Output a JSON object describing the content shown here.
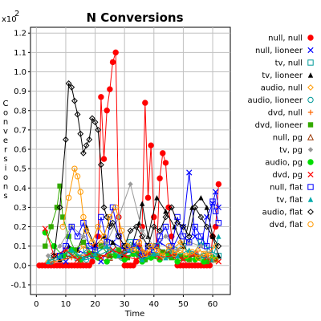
{
  "chart_data": {
    "type": "line",
    "title": "N Conversions",
    "xlabel": "Time",
    "ylabel": "Conversions",
    "y_multiplier": "x10",
    "y_multiplier_exp": "2",
    "xlim": [
      -2,
      66
    ],
    "ylim": [
      -0.15,
      1.23
    ],
    "x_ticks": [
      0,
      10,
      20,
      30,
      40,
      50,
      60
    ],
    "y_ticks": [
      -0.1,
      0.0,
      0.1,
      0.2,
      0.3,
      0.4,
      0.5,
      0.6,
      0.7,
      0.8,
      0.9,
      1.0,
      1.1,
      1.2
    ],
    "y_tick_labels": [
      "-0.1",
      "0.0",
      "0.1",
      "0.2",
      "0.3",
      "0.4",
      "0.5",
      "0.6",
      "0.7",
      "0.8",
      "0.9",
      "1.0",
      "1.1",
      "1.2"
    ],
    "grid": true,
    "legend_position": "right",
    "series": [
      {
        "name": "null, null",
        "color": "#ff0000",
        "marker": "filled-circle",
        "x": [
          1,
          2,
          3,
          4,
          5,
          6,
          7,
          8,
          9,
          10,
          11,
          12,
          13,
          14,
          15,
          16,
          17,
          18,
          19,
          20,
          21,
          22,
          23,
          24,
          25,
          26,
          27,
          28,
          29,
          30,
          31,
          32,
          33,
          34,
          35,
          36,
          37,
          38,
          39,
          40,
          41,
          42,
          43,
          44,
          45,
          46,
          47,
          48,
          49,
          50,
          51,
          52,
          53,
          54,
          55,
          56,
          57,
          58,
          59,
          60,
          61,
          62
        ],
        "y": [
          0,
          0,
          0,
          0,
          0,
          0,
          0,
          0,
          0,
          0,
          0,
          0,
          0,
          0,
          0,
          0,
          0,
          0,
          0.02,
          0.1,
          0.15,
          0.87,
          0.55,
          0.8,
          0.91,
          1.05,
          1.1,
          0.25,
          0.05,
          0,
          0,
          0,
          0,
          0.02,
          0.1,
          0.2,
          0.84,
          0.35,
          0.62,
          0.25,
          0.1,
          0.45,
          0.58,
          0.53,
          0.3,
          0.15,
          0.05,
          0,
          0,
          0,
          0,
          0,
          0,
          0,
          0,
          0,
          0,
          0,
          0,
          0.15,
          0.2,
          0.42
        ]
      },
      {
        "name": "null, lioneer",
        "color": "#0000ff",
        "marker": "x",
        "x": [
          10,
          14,
          18,
          22,
          26,
          30,
          34,
          38,
          42,
          46,
          50,
          52,
          54,
          56,
          58,
          60,
          61,
          62
        ],
        "y": [
          0.02,
          0.08,
          0.05,
          0.02,
          0.12,
          0.08,
          0.1,
          0.05,
          0.12,
          0.08,
          0.2,
          0.48,
          0.15,
          0.1,
          0.25,
          0.32,
          0.38,
          0.3
        ]
      },
      {
        "name": "tv, null",
        "color": "#009999",
        "marker": "open-square",
        "x": [
          5,
          8,
          11,
          14,
          17,
          20,
          23,
          26,
          29,
          32,
          35,
          38,
          41,
          44,
          47,
          50,
          53,
          56,
          59,
          62
        ],
        "y": [
          0.03,
          0.05,
          0.06,
          0.04,
          0.08,
          0.05,
          0.1,
          0.07,
          0.05,
          0.12,
          0.08,
          0.05,
          0.1,
          0.06,
          0.08,
          0.1,
          0.05,
          0.12,
          0.08,
          0.05
        ]
      },
      {
        "name": "tv, lioneer",
        "color": "#000000",
        "marker": "filled-triangle",
        "x": [
          8,
          11,
          14,
          17,
          20,
          23,
          26,
          29,
          32,
          35,
          36,
          38,
          41,
          44,
          47,
          50,
          53,
          56,
          58,
          60,
          62
        ],
        "y": [
          0.03,
          0.1,
          0.08,
          0.2,
          0.1,
          0.15,
          0.12,
          0.05,
          0.08,
          0.22,
          0.32,
          0.15,
          0.35,
          0.28,
          0.2,
          0.1,
          0.3,
          0.35,
          0.3,
          0.15,
          0.05
        ]
      },
      {
        "name": "audio, null",
        "color": "#ff9900",
        "marker": "open-diamond",
        "x": [
          4,
          7,
          10,
          13,
          16,
          19,
          22,
          25,
          28,
          31,
          34,
          37,
          40,
          43,
          46,
          49,
          52,
          55,
          58,
          61
        ],
        "y": [
          0.02,
          0.05,
          0.08,
          0.05,
          0.1,
          0.06,
          0.12,
          0.08,
          0.05,
          0.1,
          0.07,
          0.05,
          0.1,
          0.06,
          0.08,
          0.12,
          0.05,
          0.08,
          0.06,
          0.1
        ]
      },
      {
        "name": "audio, lioneer",
        "color": "#009999",
        "marker": "open-circle",
        "x": [
          5,
          9,
          13,
          17,
          21,
          25,
          29,
          33,
          37,
          41,
          45,
          49,
          53,
          57,
          61
        ],
        "y": [
          0.02,
          0.04,
          0.06,
          0.03,
          0.05,
          0.08,
          0.04,
          0.06,
          0.03,
          0.05,
          0.07,
          0.04,
          0.06,
          0.05,
          0.03
        ]
      },
      {
        "name": "dvd, null",
        "color": "#ff6600",
        "marker": "plus",
        "x": [
          6,
          12,
          18,
          24,
          30,
          36,
          42,
          48,
          54,
          60
        ],
        "y": [
          0.02,
          0.04,
          0.06,
          0.05,
          0.03,
          0.08,
          0.05,
          0.04,
          0.06,
          0.03
        ]
      },
      {
        "name": "dvd, lioneer",
        "color": "#33aa00",
        "marker": "filled-square",
        "x": [
          3,
          5,
          7,
          8,
          9,
          11,
          13,
          16,
          19,
          22,
          25,
          28,
          31,
          34,
          37,
          40,
          43,
          46,
          49,
          52,
          55,
          58,
          61
        ],
        "y": [
          0.1,
          0.2,
          0.3,
          0.41,
          0.25,
          0.15,
          0.08,
          0.12,
          0.06,
          0.1,
          0.05,
          0.08,
          0.04,
          0.06,
          0.03,
          0.05,
          0.07,
          0.04,
          0.05,
          0.03,
          0.04,
          0.02,
          0.03
        ]
      },
      {
        "name": "null, pg",
        "color": "#993300",
        "marker": "open-triangle",
        "x": [
          10,
          15,
          20,
          25,
          30,
          35,
          40,
          45,
          50,
          55,
          60
        ],
        "y": [
          0.05,
          0.03,
          0.06,
          0.04,
          0.08,
          0.05,
          0.1,
          0.06,
          0.04,
          0.05,
          0.03
        ]
      },
      {
        "name": "tv, pg",
        "color": "#999999",
        "marker": "filled-diamond",
        "x": [
          4,
          8,
          12,
          16,
          20,
          24,
          28,
          32,
          36,
          40,
          44,
          48,
          52,
          56,
          60
        ],
        "y": [
          0.05,
          0.1,
          0.2,
          0.15,
          0.08,
          0.12,
          0.25,
          0.42,
          0.18,
          0.1,
          0.15,
          0.08,
          0.12,
          0.1,
          0.05
        ]
      },
      {
        "name": "audio, pg",
        "color": "#00dd00",
        "marker": "filled-circle",
        "x": [
          3,
          6,
          9,
          12,
          15,
          18,
          21,
          24,
          27,
          30,
          33,
          36,
          39,
          42,
          45,
          48,
          51,
          54,
          57,
          60
        ],
        "y": [
          0.17,
          0.1,
          0.05,
          0.08,
          0.03,
          0.06,
          0.04,
          0.02,
          0.05,
          0.03,
          0.06,
          0.02,
          0.04,
          0.03,
          0.05,
          0.02,
          0.04,
          0.03,
          0.02,
          0.04
        ]
      },
      {
        "name": "dvd, pg",
        "color": "#ff0000",
        "marker": "x",
        "x": [
          3,
          6,
          10,
          14,
          18,
          22,
          26,
          30,
          34,
          38,
          42,
          46,
          50,
          54,
          58,
          62
        ],
        "y": [
          0.19,
          0.05,
          0.08,
          0.03,
          0.06,
          0.04,
          0.08,
          0.05,
          0.03,
          0.06,
          0.04,
          0.05,
          0.03,
          0.06,
          0.04,
          0.02
        ]
      },
      {
        "name": "null, flat",
        "color": "#0000ff",
        "marker": "open-square",
        "x": [
          8,
          10,
          12,
          14,
          16,
          18,
          20,
          22,
          24,
          26,
          28,
          30,
          32,
          34,
          36,
          38,
          40,
          42,
          44,
          46,
          48,
          50,
          52,
          54,
          56,
          58,
          60,
          61,
          62
        ],
        "y": [
          0.05,
          0.1,
          0.2,
          0.15,
          0.22,
          0.1,
          0.08,
          0.25,
          0.12,
          0.3,
          0.15,
          0.1,
          0.08,
          0.12,
          0.05,
          0.1,
          0.08,
          0.15,
          0.2,
          0.1,
          0.25,
          0.15,
          0.12,
          0.2,
          0.15,
          0.1,
          0.33,
          0.28,
          0.22
        ]
      },
      {
        "name": "tv, flat",
        "color": "#00aaaa",
        "marker": "filled-triangle",
        "x": [
          4,
          8,
          12,
          16,
          20,
          24,
          28,
          32,
          36,
          40,
          44,
          48,
          52,
          56,
          60,
          62
        ],
        "y": [
          0.02,
          0.05,
          0.08,
          0.04,
          0.06,
          0.1,
          0.05,
          0.08,
          0.03,
          0.06,
          0.04,
          0.05,
          0.08,
          0.05,
          0.03,
          0.15
        ]
      },
      {
        "name": "audio, flat",
        "color": "#000000",
        "marker": "open-diamond",
        "x": [
          6,
          8,
          10,
          11,
          12,
          13,
          14,
          15,
          16,
          17,
          18,
          19,
          20,
          21,
          22,
          23,
          24,
          25,
          26,
          28,
          30,
          32,
          34,
          36,
          38,
          40,
          42,
          44,
          46,
          48,
          50,
          52,
          54,
          56,
          58,
          60,
          62
        ],
        "y": [
          0.05,
          0.3,
          0.65,
          0.94,
          0.92,
          0.85,
          0.78,
          0.68,
          0.58,
          0.62,
          0.65,
          0.76,
          0.74,
          0.7,
          0.52,
          0.3,
          0.25,
          0.2,
          0.22,
          0.15,
          0.1,
          0.18,
          0.2,
          0.15,
          0.1,
          0.2,
          0.18,
          0.25,
          0.3,
          0.22,
          0.2,
          0.15,
          0.3,
          0.25,
          0.2,
          0.15,
          0.1
        ]
      },
      {
        "name": "dvd, flat",
        "color": "#ff9900",
        "marker": "open-circle",
        "x": [
          9,
          11,
          13,
          14,
          15,
          16,
          17,
          19,
          21,
          23,
          25,
          27,
          29,
          31,
          33,
          35,
          37,
          39,
          41,
          43,
          45,
          47,
          49,
          51,
          53,
          55,
          57,
          59,
          61
        ],
        "y": [
          0.2,
          0.35,
          0.5,
          0.46,
          0.38,
          0.25,
          0.18,
          0.12,
          0.2,
          0.15,
          0.25,
          0.3,
          0.18,
          0.1,
          0.08,
          0.12,
          0.06,
          0.1,
          0.08,
          0.05,
          0.1,
          0.06,
          0.08,
          0.05,
          0.07,
          0.04,
          0.06,
          0.05,
          0.03
        ]
      }
    ]
  }
}
